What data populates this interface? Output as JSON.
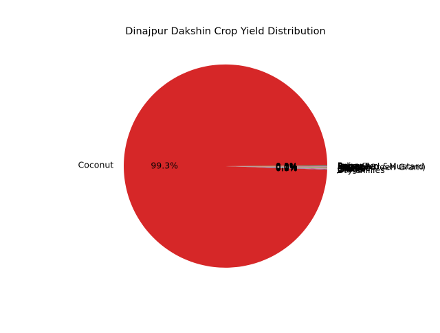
{
  "chart_data": {
    "type": "pie",
    "title": "Dinajpur Dakshin Crop Yield Distribution",
    "slices": [
      {
        "label": "Arhar/Tur",
        "percent": 0.05,
        "autopct": "0.0%",
        "color": "#1f77b4"
      },
      {
        "label": "Bajra",
        "percent": 0.03,
        "autopct": "0.0%",
        "color": "#ff7f0e"
      },
      {
        "label": "Banana",
        "percent": 0.05,
        "autopct": "0.1%",
        "color": "#2ca02c"
      },
      {
        "label": "Coconut",
        "percent": 99.3,
        "autopct": "99.3%",
        "color": "#d62728"
      },
      {
        "label": "Dry chillies",
        "percent": 0.05,
        "autopct": "0.0%",
        "color": "#9467bd"
      },
      {
        "label": "Garlic",
        "percent": 0.06,
        "autopct": "0.1%",
        "color": "#8c564b"
      },
      {
        "label": "Ginger",
        "percent": 0.06,
        "autopct": "0.1%",
        "color": "#e377c2"
      },
      {
        "label": "Gram",
        "percent": 0.03,
        "autopct": "0.0%",
        "color": "#7f7f7f"
      },
      {
        "label": "Jowar",
        "percent": 0.03,
        "autopct": "0.0%",
        "color": "#bcbd22"
      },
      {
        "label": "Jute",
        "percent": 0.07,
        "autopct": "0.1%",
        "color": "#17becf"
      },
      {
        "label": "Linseed",
        "percent": 0.02,
        "autopct": "0.0%",
        "color": "#1f77b4"
      },
      {
        "label": "Maize",
        "percent": 0.08,
        "autopct": "0.1%",
        "color": "#ff7f0e"
      },
      {
        "label": "Masoor",
        "percent": 0.02,
        "autopct": "0.0%",
        "color": "#2ca02c"
      },
      {
        "label": "Mesta",
        "percent": 0.04,
        "autopct": "0.0%",
        "color": "#d62728"
      },
      {
        "label": "Moong(Green Gram)",
        "percent": 0.02,
        "autopct": "0.0%",
        "color": "#9467bd"
      },
      {
        "label": "Potato",
        "percent": 0.05,
        "autopct": "0.1%",
        "color": "#8c564b"
      },
      {
        "label": "Rapeseed &Mustard",
        "percent": 0.02,
        "autopct": "0.0%",
        "color": "#e377c2"
      }
    ]
  }
}
